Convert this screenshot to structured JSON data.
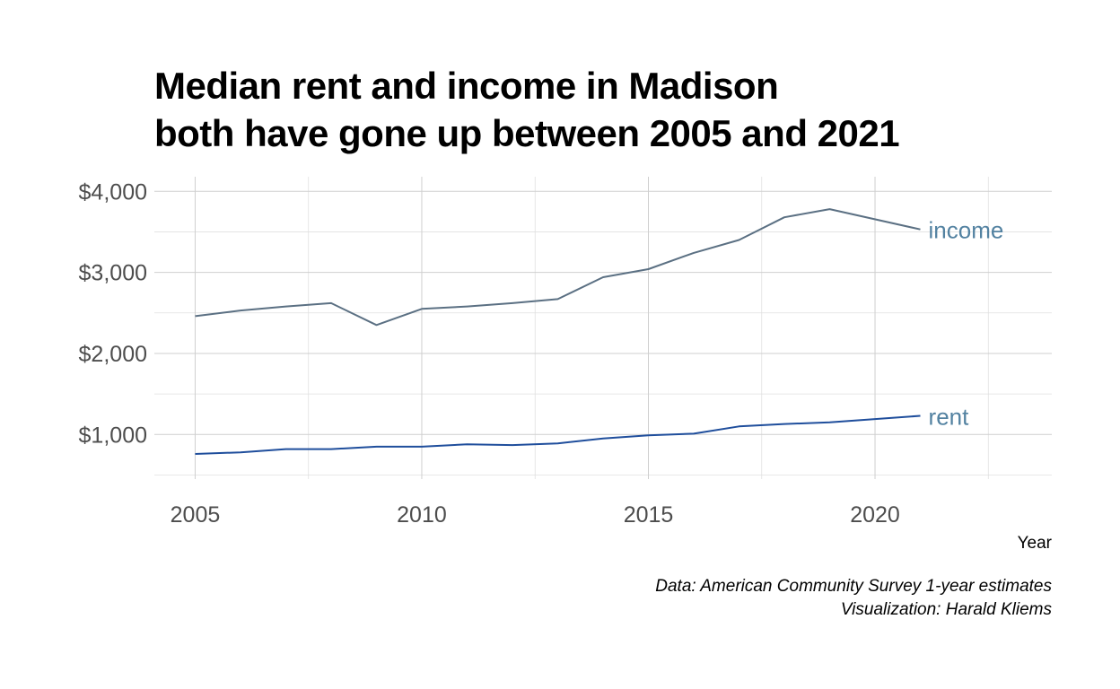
{
  "chart_data": {
    "type": "line",
    "title_lines": [
      "Median rent and income in Madison",
      "both have gone up between 2005 and 2021"
    ],
    "xlabel": "Year",
    "ylabel": "",
    "caption_lines": [
      "Data: American Community Survey 1-year estimates",
      "Visualization: Harald Kliems"
    ],
    "x": [
      2005,
      2006,
      2007,
      2008,
      2009,
      2010,
      2011,
      2012,
      2013,
      2014,
      2015,
      2016,
      2017,
      2018,
      2019,
      2021
    ],
    "xlim": [
      2004.1,
      2023.9
    ],
    "ylim": [
      450,
      4180
    ],
    "x_ticks": [
      2005,
      2010,
      2015,
      2020
    ],
    "x_tick_labels": [
      "2005",
      "2010",
      "2015",
      "2020"
    ],
    "x_minor_ticks": [
      2007.5,
      2012.5,
      2017.5,
      2022.5
    ],
    "y_ticks": [
      1000,
      2000,
      3000,
      4000
    ],
    "y_tick_labels": [
      "$1,000",
      "$2,000",
      "$3,000",
      "$4,000"
    ],
    "y_minor_ticks": [
      500,
      1500,
      2500,
      3500
    ],
    "grid": true,
    "legend": "direct labels at line ends",
    "series": [
      {
        "name": "income",
        "color": "#5b7083",
        "values": [
          2460,
          2530,
          2580,
          2620,
          2350,
          2550,
          2580,
          2620,
          2670,
          2940,
          3040,
          3240,
          3400,
          3680,
          3780,
          3530
        ]
      },
      {
        "name": "rent",
        "color": "#1f4e9c",
        "values": [
          760,
          780,
          820,
          820,
          850,
          850,
          880,
          870,
          890,
          950,
          990,
          1010,
          1100,
          1130,
          1150,
          1230
        ]
      }
    ],
    "label_color": "#5382a1"
  }
}
